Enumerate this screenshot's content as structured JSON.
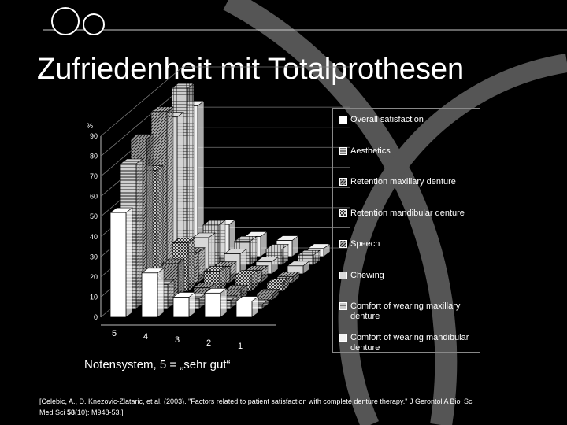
{
  "slide": {
    "title": "Zufriedenheit mit Totalprothesen",
    "note": "Notensystem, 5 = „sehr gut“",
    "citation_line1": "[Celebic, A., D. Knezovic-Zlataric, et al. (2003). \"Factors related to patient satisfaction with complete denture therapy.\" J Gerontol A Biol Sci",
    "citation_line2": [
      "Med Sci ",
      "58",
      "(10): M948-53.]"
    ]
  },
  "chart_data": {
    "type": "bar3d",
    "ylabel": "%",
    "categories": [
      "5",
      "4",
      "3",
      "2",
      "1"
    ],
    "ylim": [
      0,
      90
    ],
    "yticks": [
      0,
      10,
      20,
      30,
      40,
      50,
      60,
      70,
      80,
      90
    ],
    "grid": true,
    "series": [
      {
        "name": "Overall satisfaction",
        "color": "#ffffff",
        "values": [
          52,
          22,
          10,
          12,
          8
        ]
      },
      {
        "name": "Aesthetics",
        "color": "#d0d0d0",
        "pattern": "horizontal-lines",
        "values": [
          72,
          12,
          5,
          4,
          2
        ]
      },
      {
        "name": "Retention maxillary denture",
        "color": "#9a9a9a",
        "pattern": "diagonal",
        "values": [
          80,
          18,
          6,
          5,
          3
        ]
      },
      {
        "name": "Retention mandibular denture",
        "color": "#cccccc",
        "pattern": "checker",
        "values": [
          60,
          24,
          10,
          8,
          4
        ]
      },
      {
        "name": "Speech",
        "color": "#aaaaaa",
        "pattern": "diagonal",
        "values": [
          85,
          15,
          8,
          6,
          3
        ]
      },
      {
        "name": "Chewing",
        "color": "#d8d8d8",
        "values": [
          78,
          18,
          10,
          6,
          4
        ]
      },
      {
        "name": "Comfort of wearing maxillary denture",
        "color": "#cccccc",
        "pattern": "grid",
        "values": [
          88,
          20,
          12,
          8,
          5
        ]
      },
      {
        "name": "Comfort of wearing mandibular denture",
        "color": "#f2f2f2",
        "values": [
          75,
          16,
          10,
          8,
          4
        ]
      }
    ]
  }
}
